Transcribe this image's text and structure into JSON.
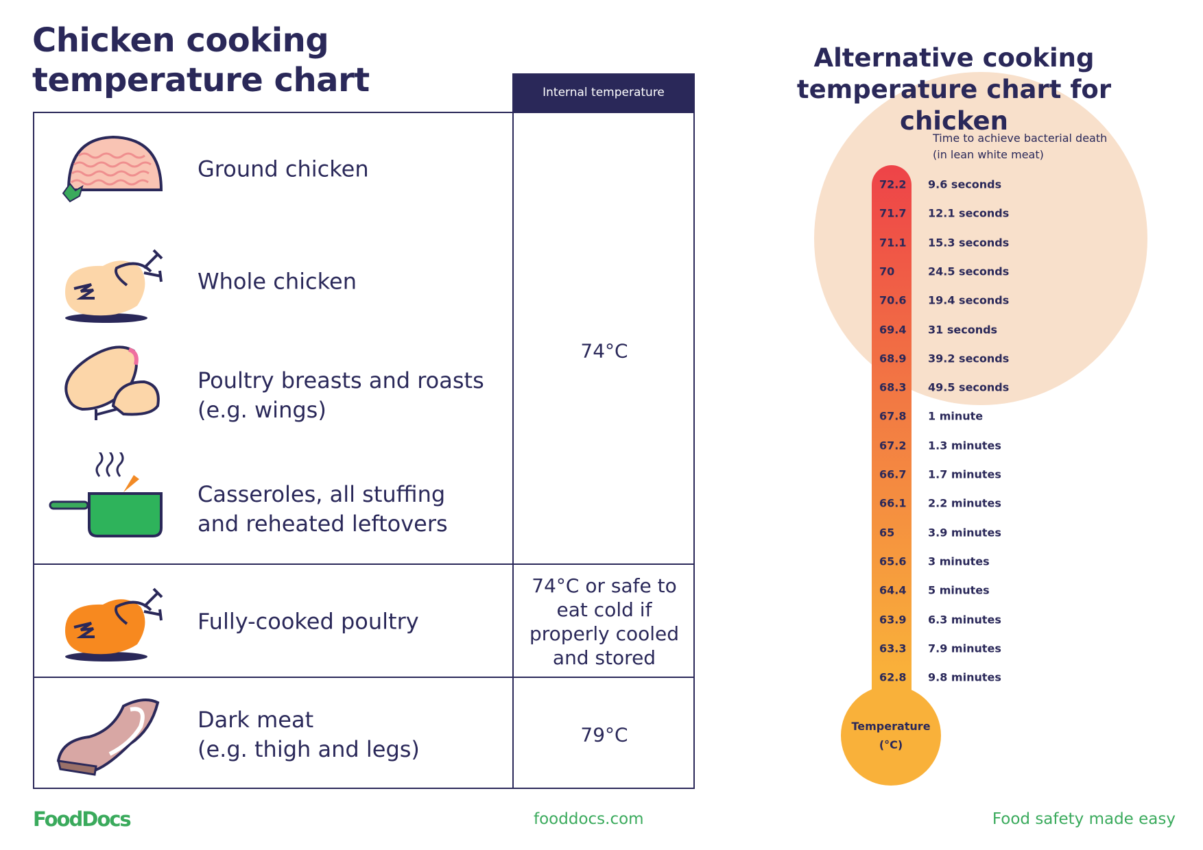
{
  "title": {
    "line1": "Chicken cooking",
    "line2": "temperature chart"
  },
  "table": {
    "header": "Internal temperature",
    "rows": [
      {
        "label": [
          "Ground chicken"
        ],
        "icon": "ground-chicken-icon"
      },
      {
        "label": [
          "Whole chicken"
        ],
        "icon": "whole-chicken-icon"
      },
      {
        "label": [
          "Poultry breasts and roasts",
          "(e.g. wings)"
        ],
        "icon": "chicken-breast-icon"
      },
      {
        "label": [
          "Casseroles, all stuffing",
          "and reheated leftovers"
        ],
        "icon": "casserole-pot-icon"
      },
      {
        "label": [
          "Fully-cooked poultry"
        ],
        "icon": "cooked-chicken-icon"
      },
      {
        "label": [
          "Dark meat",
          "(e.g. thigh and legs)"
        ],
        "icon": "dark-meat-icon"
      }
    ],
    "temps": [
      {
        "lines": [
          "74°C"
        ]
      },
      {
        "lines": [
          "74°C or safe to",
          "eat cold if",
          "properly cooled",
          "and stored"
        ]
      },
      {
        "lines": [
          "79°C"
        ]
      }
    ]
  },
  "alt": {
    "title": {
      "line1": "Alternative cooking",
      "line2": "temperature chart for chicken"
    },
    "time_heading": {
      "line1": "Time to achieve bacterial death",
      "line2": "(in lean white meat)"
    },
    "bulb_label": {
      "line1": "Temperature",
      "line2": "(°C)"
    },
    "rows": [
      {
        "temp": "72.2",
        "time": "9.6 seconds"
      },
      {
        "temp": "71.7",
        "time": "12.1 seconds"
      },
      {
        "temp": "71.1",
        "time": "15.3 seconds"
      },
      {
        "temp": "70",
        "time": "24.5 seconds"
      },
      {
        "temp": "70.6",
        "time": "19.4 seconds"
      },
      {
        "temp": "69.4",
        "time": "31 seconds"
      },
      {
        "temp": "68.9",
        "time": "39.2 seconds"
      },
      {
        "temp": "68.3",
        "time": "49.5 seconds"
      },
      {
        "temp": "67.8",
        "time": "1 minute"
      },
      {
        "temp": "67.2",
        "time": "1.3 minutes"
      },
      {
        "temp": "66.7",
        "time": "1.7 minutes"
      },
      {
        "temp": "66.1",
        "time": "2.2 minutes"
      },
      {
        "temp": "65",
        "time": "3.9 minutes"
      },
      {
        "temp": "65.6",
        "time": "3 minutes"
      },
      {
        "temp": "64.4",
        "time": "5 minutes"
      },
      {
        "temp": "63.9",
        "time": "6.3 minutes"
      },
      {
        "temp": "63.3",
        "time": "7.9 minutes"
      },
      {
        "temp": "62.8",
        "time": "9.8 minutes"
      }
    ],
    "colors": {
      "hot": "#ee4348",
      "warm": "#f9b13a",
      "circle": "#f8e0cb"
    }
  },
  "footer": {
    "logo": "FoodDocs",
    "url": "fooddocs.com",
    "tagline": "Food safety made easy"
  },
  "colors": {
    "navy": "#2a2859",
    "green": "#3aaa5c"
  }
}
